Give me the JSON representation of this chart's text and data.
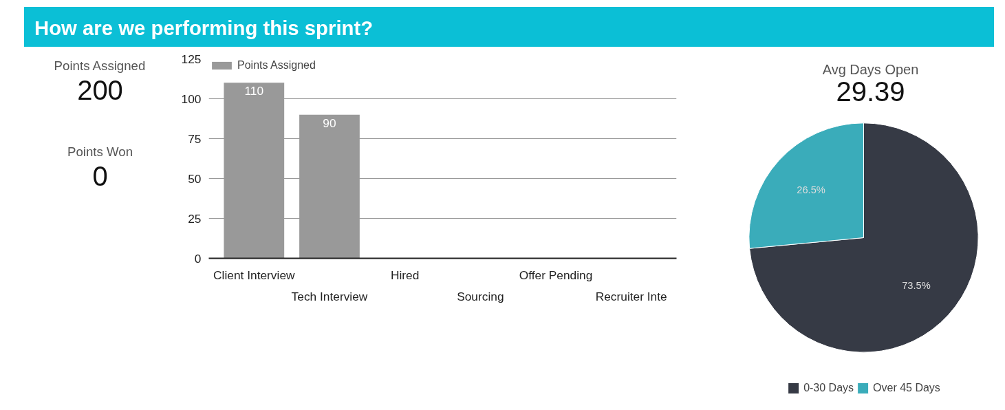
{
  "chart_data": [
    {
      "type": "other",
      "title": "How are we performing this sprint?",
      "annotations": [
        "Points Assigned",
        "200",
        "Points Won",
        "0"
      ]
    },
    {
      "type": "bar",
      "categories": [
        "Client Interview",
        "Tech Interview",
        "Hired",
        "Sourcing",
        "Offer Pending",
        "Recruiter Inte"
      ],
      "series": [
        {
          "name": "Points Assigned",
          "color": "#999999",
          "values": [
            110,
            90,
            null,
            null,
            null,
            null
          ]
        }
      ],
      "ylim": [
        0,
        125
      ],
      "yticks": [
        0,
        25,
        50,
        75,
        100,
        125
      ],
      "grid": "y",
      "legend": "top left",
      "data_labels": true
    },
    {
      "type": "other",
      "annotations": [
        "Avg Days Open",
        "29.39"
      ]
    },
    {
      "type": "pie",
      "categories": [
        "0-30 Days",
        "Over 45 Days"
      ],
      "values": [
        73.5,
        26.5
      ],
      "colors": [
        "#363a45",
        "#3aacba"
      ],
      "value_labels": [
        "73.5%",
        "26.5%"
      ],
      "legend": "bottom"
    }
  ]
}
